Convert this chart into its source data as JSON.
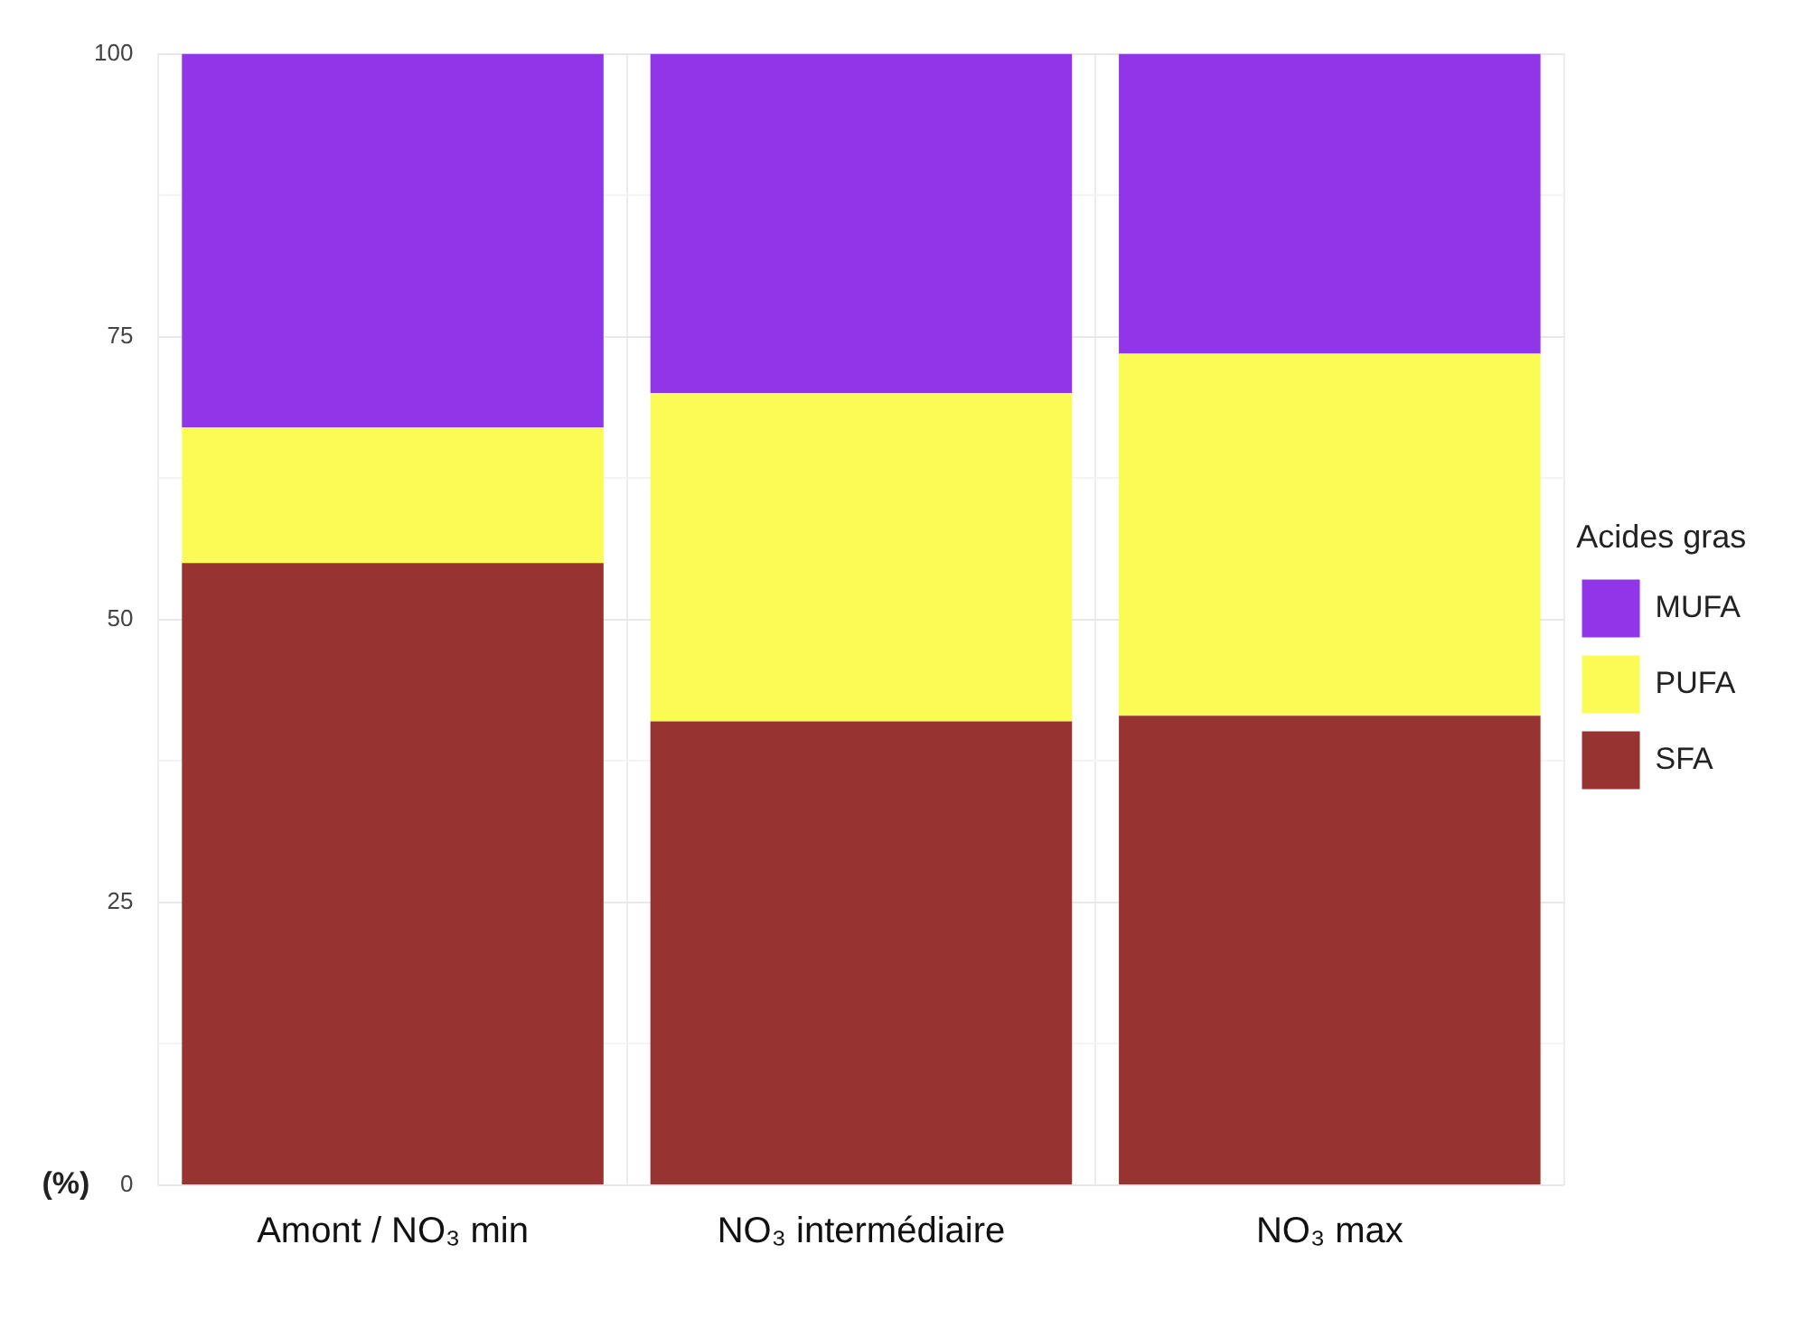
{
  "chart_data": {
    "type": "bar",
    "stacked": true,
    "ylabel": "(%)",
    "legend_title": "Acides gras",
    "legend": "right",
    "categories": [
      "Amont / NO₃ min",
      "NO₃ intermédiaire",
      "NO₃ max"
    ],
    "series": [
      {
        "name": "SFA",
        "color": "#973431",
        "values": [
          55,
          41,
          41.5
        ]
      },
      {
        "name": "PUFA",
        "color": "#fbfb55",
        "values": [
          12,
          29,
          32
        ]
      },
      {
        "name": "MUFA",
        "color": "#9035e8",
        "values": [
          33,
          30,
          26.5
        ]
      }
    ],
    "ylim": [
      0,
      100
    ],
    "yticks": [
      0,
      {
        "value": 12.5,
        "label": null
      },
      25,
      {
        "value": 37.5,
        "label": null
      },
      50,
      {
        "value": 62.5,
        "label": null
      },
      75,
      {
        "value": 87.5,
        "label": null
      },
      100
    ],
    "grid": true
  }
}
